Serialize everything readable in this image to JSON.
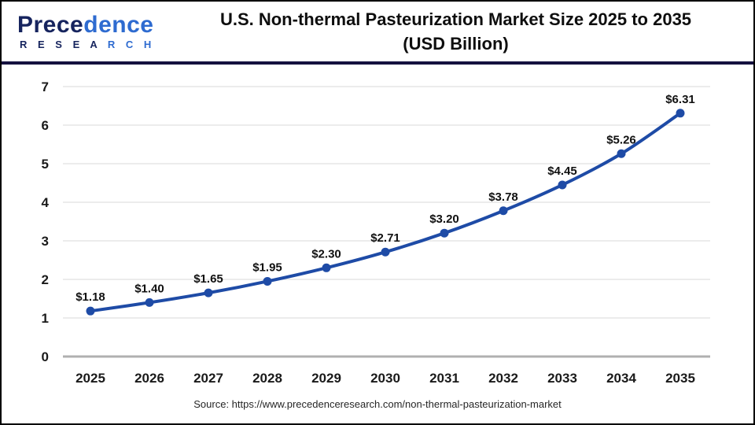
{
  "header": {
    "logo": {
      "brand_dark": "Prece",
      "brand_light": "dence",
      "research_dark": "R E S E A ",
      "research_light": "R C H"
    },
    "title_line1": "U.S. Non-thermal Pasteurization Market Size 2025 to 2035",
    "title_line2": "(USD Billion)"
  },
  "chart_data": {
    "type": "line",
    "title": "U.S. Non-thermal Pasteurization Market Size 2025 to 2035 (USD Billion)",
    "categories": [
      "2025",
      "2026",
      "2027",
      "2028",
      "2029",
      "2030",
      "2031",
      "2032",
      "2033",
      "2034",
      "2035"
    ],
    "values": [
      1.18,
      1.4,
      1.65,
      1.95,
      2.3,
      2.71,
      3.2,
      3.78,
      4.45,
      5.26,
      6.31
    ],
    "point_labels": [
      "$1.18",
      "$1.40",
      "$1.65",
      "$1.95",
      "$2.30",
      "$2.71",
      "$3.20",
      "$3.78",
      "$4.45",
      "$5.26",
      "$6.31"
    ],
    "series_name": "U.S. Non-thermal Pasteurization Market Size (USD Billion)",
    "ylim": [
      0,
      7
    ],
    "yticks": [
      0,
      1,
      2,
      3,
      4,
      5,
      6,
      7
    ],
    "grid": true,
    "legend": "none",
    "colors": {
      "line": "#1e4ba6",
      "marker": "#1e4ba6",
      "gridline": "#e6e6e6",
      "axis_baseline": "#b0b0b0",
      "tick_text": "#1a1a1a",
      "label_text": "#111111"
    }
  },
  "footer": {
    "source": "Source: https://www.precedenceresearch.com/non-thermal-pasteurization-market"
  }
}
